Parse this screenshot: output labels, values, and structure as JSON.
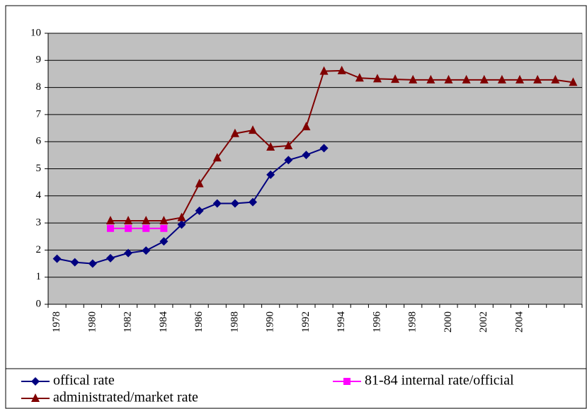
{
  "chart_data": {
    "type": "line",
    "categories": [
      "1978",
      null,
      "1980",
      null,
      "1982",
      null,
      "1984",
      null,
      "1986",
      null,
      "1988",
      null,
      "1990",
      null,
      "1992",
      null,
      "1994",
      null,
      "1996",
      null,
      "1998",
      null,
      "2000",
      null,
      "2002",
      null,
      "2004",
      null,
      null,
      null
    ],
    "series": [
      {
        "name": "offical rate",
        "color": "#000080",
        "marker": "diamond",
        "values": [
          1.68,
          1.55,
          1.5,
          1.7,
          1.89,
          1.98,
          2.32,
          2.94,
          3.45,
          3.72,
          3.72,
          3.77,
          4.78,
          5.32,
          5.51,
          5.76,
          null,
          null,
          null,
          null,
          null,
          null,
          null,
          null,
          null,
          null,
          null,
          null,
          null,
          null
        ]
      },
      {
        "name": "81-84 internal rate/official",
        "color": "#ff00ff",
        "marker": "square",
        "values": [
          null,
          null,
          null,
          2.8,
          2.8,
          2.8,
          2.8,
          null,
          null,
          null,
          null,
          null,
          null,
          null,
          null,
          null,
          null,
          null,
          null,
          null,
          null,
          null,
          null,
          null,
          null,
          null,
          null,
          null,
          null,
          null
        ]
      },
      {
        "name": "administrated/market rate",
        "color": "#800000",
        "marker": "triangle",
        "values": [
          null,
          null,
          null,
          3.08,
          3.08,
          3.08,
          3.08,
          3.2,
          4.45,
          5.4,
          6.3,
          6.42,
          5.8,
          5.85,
          6.55,
          8.6,
          8.62,
          8.35,
          8.32,
          8.3,
          8.28,
          8.28,
          8.28,
          8.28,
          8.28,
          8.28,
          8.28,
          8.28,
          8.28,
          8.19
        ]
      }
    ],
    "ylim": [
      0,
      10
    ],
    "yticks": [
      0,
      1,
      2,
      3,
      4,
      5,
      6,
      7,
      8,
      9,
      10
    ],
    "grid": true,
    "legend": "bottom"
  }
}
